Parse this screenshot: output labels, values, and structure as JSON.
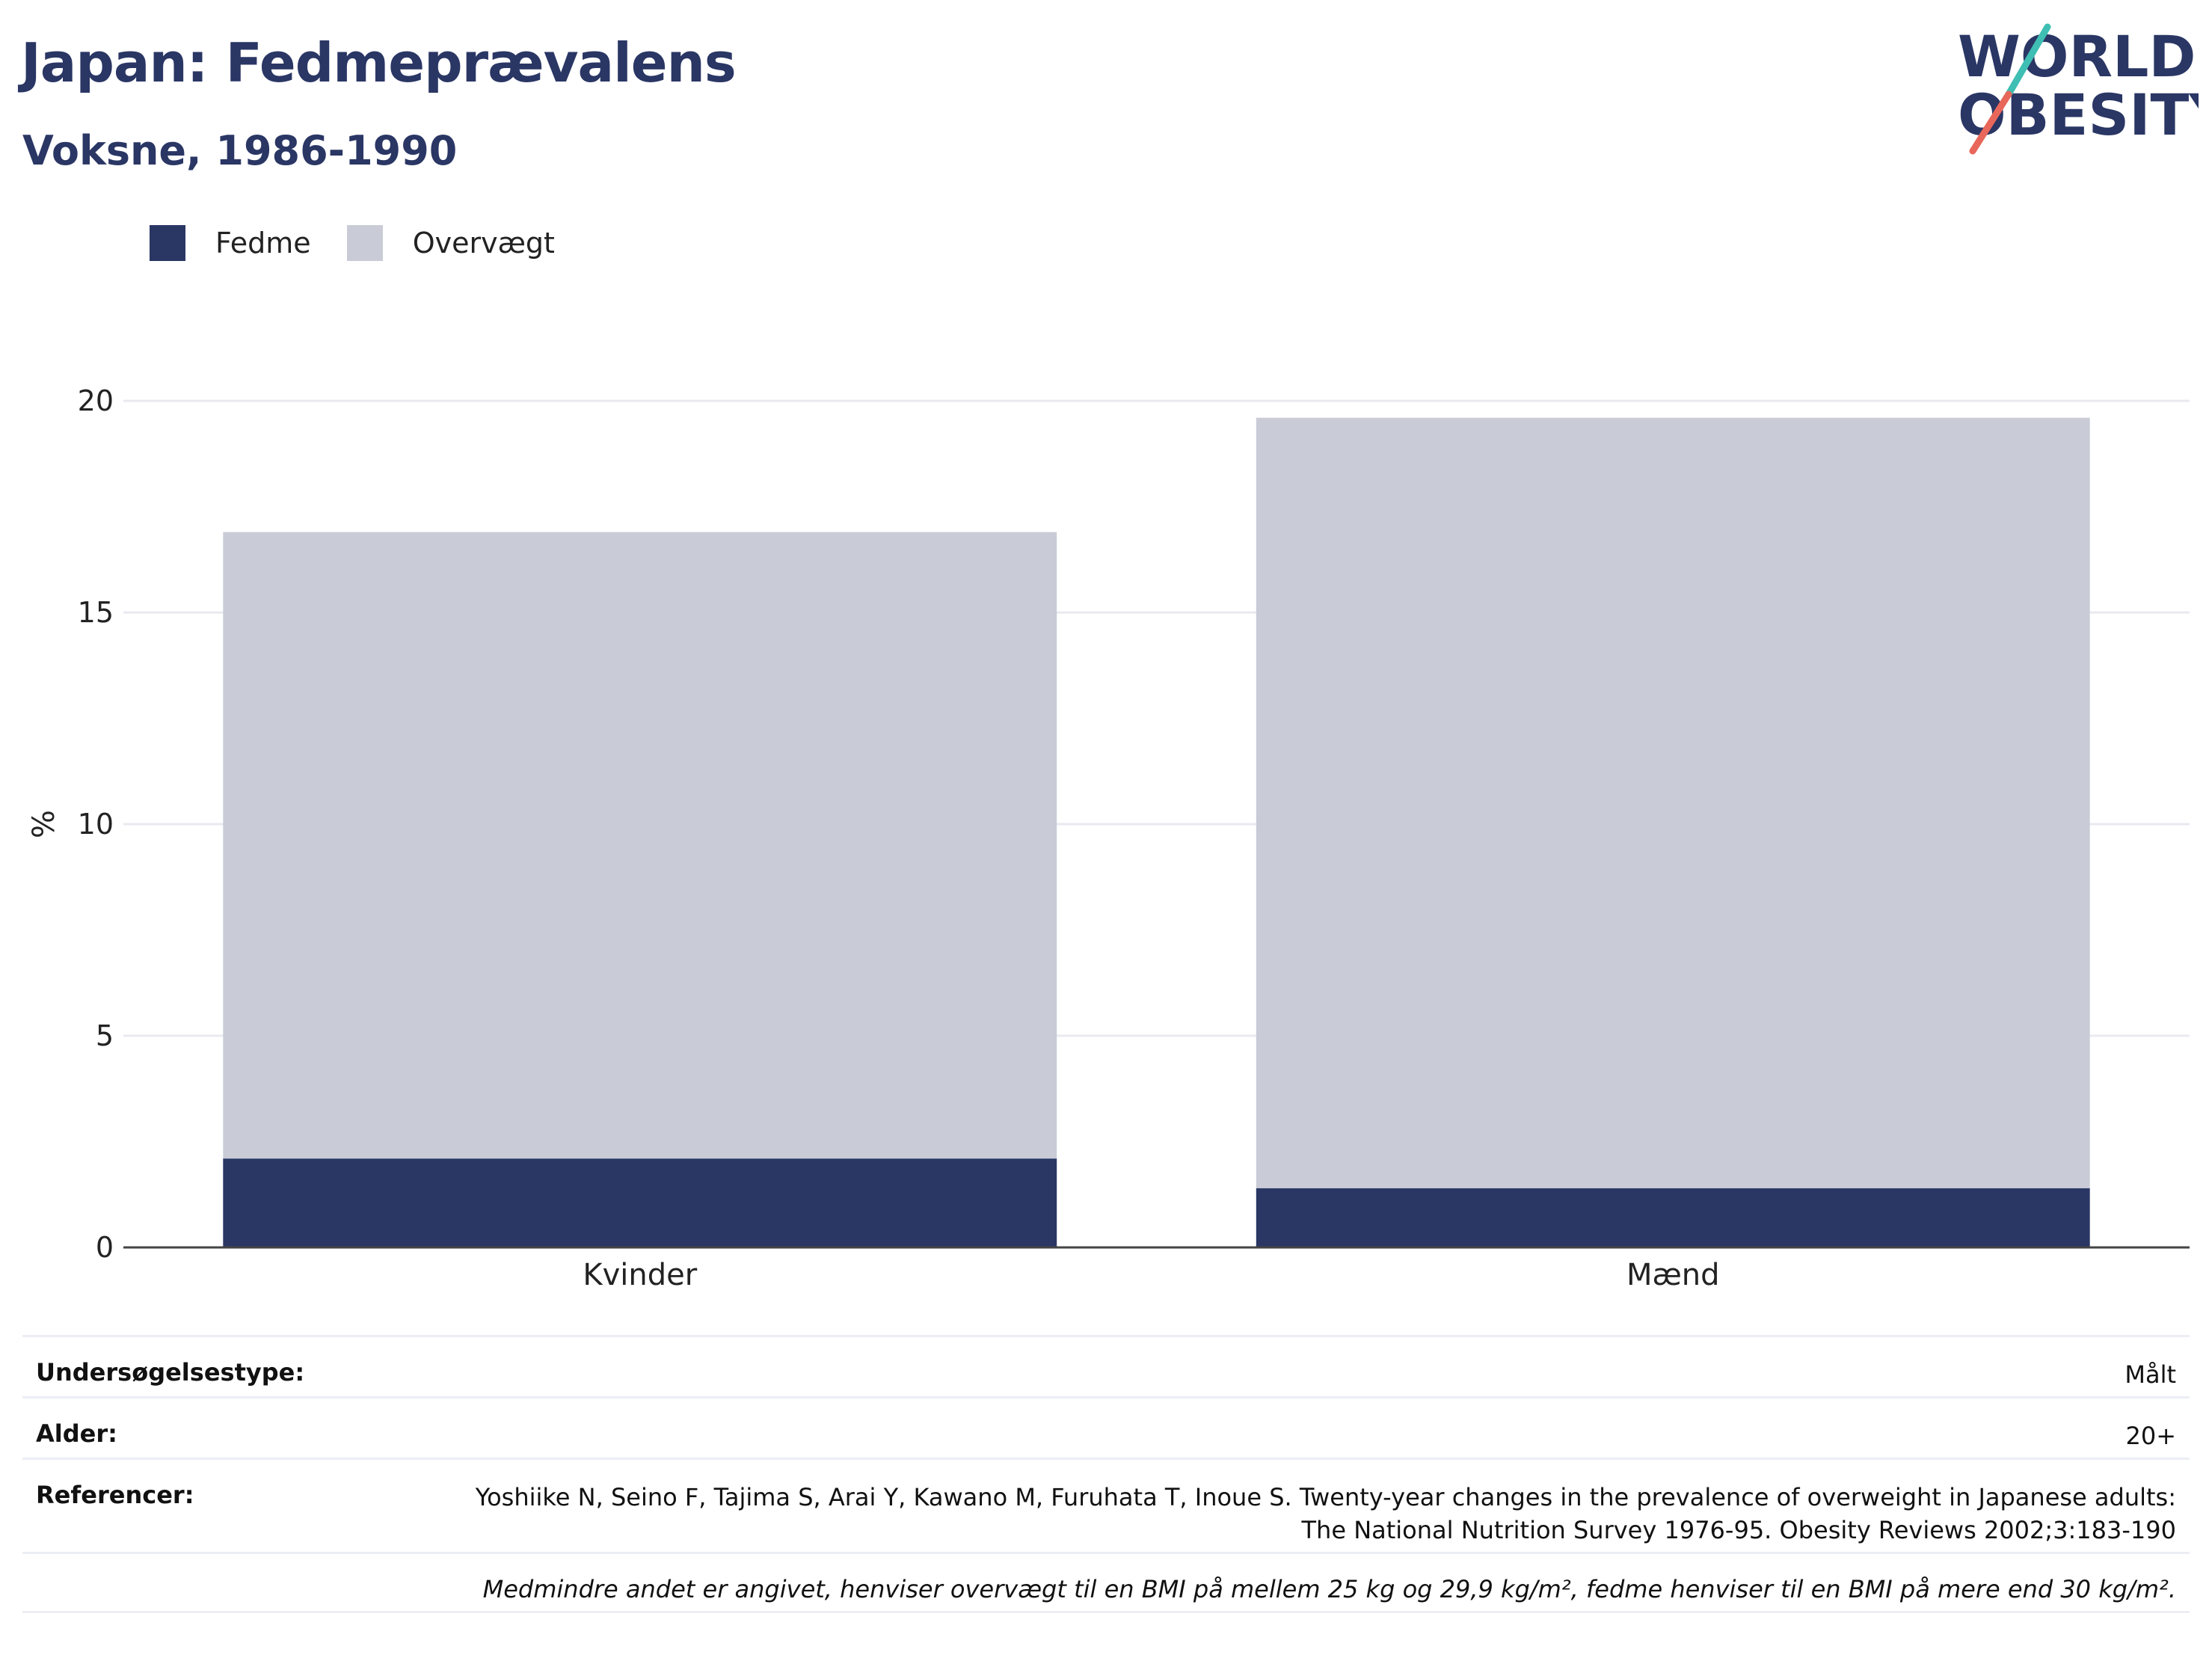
{
  "header": {
    "title": "Japan: Fedmeprævalens",
    "subtitle": "Voksne, 1986-1990"
  },
  "logo": {
    "line1": "WORLD",
    "line2": "OBESITY"
  },
  "colors": {
    "fedme": "#2a3664",
    "overvaegt": "#c9ccd7",
    "title": "#2a3664",
    "accent_teal": "#3fbfb3",
    "accent_red": "#e8675a"
  },
  "legend": [
    {
      "label": "Fedme",
      "color": "#2a3664"
    },
    {
      "label": "Overvægt",
      "color": "#c9ccd7"
    }
  ],
  "chart_data": {
    "type": "bar",
    "stacked": true,
    "categories": [
      "Kvinder",
      "Mænd"
    ],
    "series": [
      {
        "name": "Fedme",
        "values": [
          2.1,
          1.4
        ]
      },
      {
        "name": "Overvægt",
        "values": [
          14.8,
          18.2
        ]
      }
    ],
    "ylabel": "%",
    "ylim": [
      0,
      20
    ],
    "yticks": [
      0,
      5,
      10,
      15,
      20
    ],
    "grid": true,
    "legend_position": "top-left"
  },
  "info": {
    "rows": [
      {
        "key": "Undersøgelsestype:",
        "value": "Målt"
      },
      {
        "key": "Alder:",
        "value": "20+"
      },
      {
        "key": "Referencer:",
        "value": "Yoshiike N, Seino F, Tajima S, Arai Y, Kawano M, Furuhata T, Inoue S. Twenty-year changes in the prevalence of overweight in Japanese adults: The National Nutrition Survey 1976-95. Obesity Reviews 2002;3:183-190"
      }
    ],
    "note": "Medmindre andet er angivet, henviser overvægt til en BMI på mellem 25 kg og 29,9 kg/m², fedme henviser til en BMI på mere end 30 kg/m²."
  }
}
